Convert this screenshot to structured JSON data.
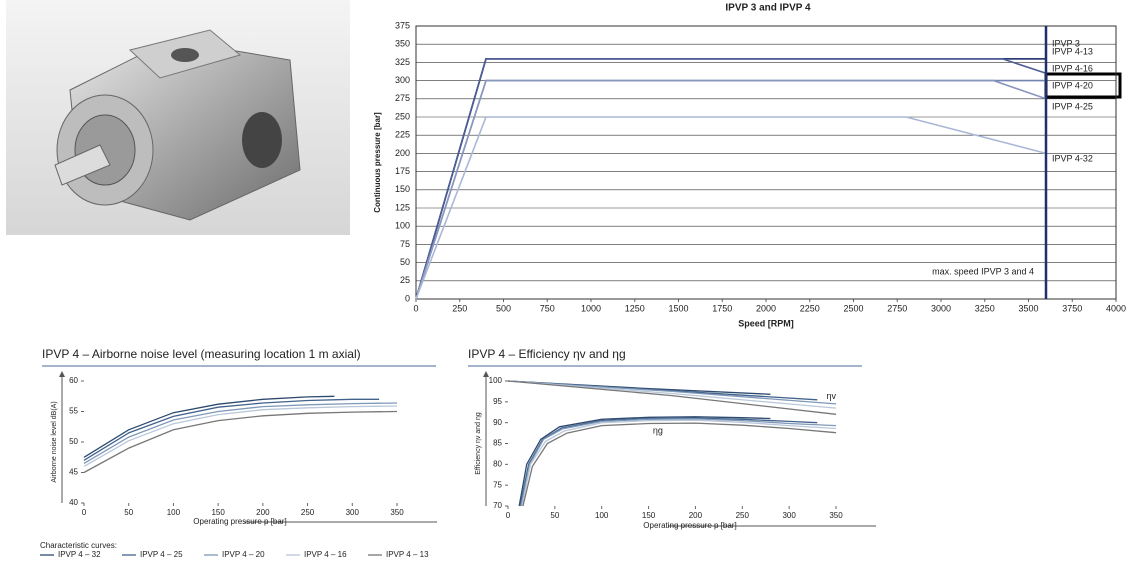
{
  "chart_data": [
    {
      "type": "line",
      "title": "IPVP 3 and IPVP 4",
      "x_label": "Speed [RPM]",
      "y_label": "Continuous pressure [bar]",
      "xlim": [
        0,
        4000
      ],
      "xticks": [
        0,
        250,
        500,
        750,
        1000,
        1250,
        1500,
        1750,
        2000,
        2250,
        2500,
        2750,
        3000,
        3250,
        3500,
        3750,
        4000
      ],
      "ylim": [
        0,
        375
      ],
      "yticks": [
        0,
        25,
        50,
        75,
        100,
        125,
        150,
        175,
        200,
        225,
        250,
        275,
        300,
        325,
        350,
        375
      ],
      "grid": true,
      "series": [
        {
          "name": "IPVP 3",
          "color": "#1f2f6e",
          "x": [
            0,
            400,
            3600
          ],
          "values": [
            0,
            330,
            330
          ]
        },
        {
          "name": "IPVP 4-13",
          "color": "#2c3d78",
          "x": [
            0,
            400,
            3600
          ],
          "values": [
            0,
            330,
            330
          ]
        },
        {
          "name": "IPVP 4-16",
          "color": "#4d5f95",
          "x": [
            0,
            400,
            3350,
            3600
          ],
          "values": [
            0,
            330,
            330,
            310
          ]
        },
        {
          "name": "IPVP 4-20",
          "color": "#7283b0",
          "x": [
            0,
            400,
            3300,
            3600
          ],
          "values": [
            0,
            300,
            300,
            300
          ]
        },
        {
          "name": "IPVP 4-25",
          "color": "#8a98bf",
          "x": [
            0,
            400,
            3300,
            3600
          ],
          "values": [
            0,
            300,
            300,
            275
          ]
        },
        {
          "name": "IPVP 4-32",
          "color": "#aab7d6",
          "x": [
            0,
            400,
            2800,
            3600
          ],
          "values": [
            0,
            250,
            250,
            200
          ]
        }
      ],
      "annotations": [
        {
          "text": "max. speed IPVP 3 and 4",
          "x": 3600,
          "y": 37
        }
      ]
    },
    {
      "type": "line",
      "title": "IPVP 4 – Airborne noise level (measuring location 1 m axial)",
      "x_label": "Operating pressure p [bar]",
      "y_label": "Airborne noise level dB(A)",
      "xlim": [
        0,
        350
      ],
      "xticks": [
        0,
        50,
        100,
        150,
        200,
        250,
        300,
        350
      ],
      "ylim": [
        40,
        60
      ],
      "yticks": [
        40,
        45,
        50,
        55,
        60
      ],
      "legend": "bottom",
      "legend_title": "Characteristic curves:",
      "series": [
        {
          "name": "IPVP 4 – 32",
          "color": "#2d4a6e",
          "x": [
            0,
            50,
            100,
            150,
            200,
            250,
            280
          ],
          "values": [
            47.5,
            52,
            54.8,
            56.2,
            57,
            57.4,
            57.5
          ]
        },
        {
          "name": "IPVP 4 – 25",
          "color": "#41628c",
          "x": [
            0,
            50,
            100,
            150,
            200,
            250,
            300,
            330
          ],
          "values": [
            47,
            51.5,
            54.2,
            55.7,
            56.4,
            56.8,
            57,
            57
          ]
        },
        {
          "name": "IPVP 4 – 20",
          "color": "#7f98b8",
          "x": [
            0,
            50,
            100,
            150,
            200,
            250,
            300,
            350
          ],
          "values": [
            46.5,
            50.8,
            53.6,
            55,
            55.8,
            56.1,
            56.3,
            56.4
          ]
        },
        {
          "name": "IPVP 4 – 16",
          "color": "#b8c7da",
          "x": [
            0,
            50,
            100,
            150,
            200,
            250,
            300,
            350
          ],
          "values": [
            46,
            50.2,
            53,
            54.5,
            55.3,
            55.6,
            55.8,
            55.9
          ]
        },
        {
          "name": "IPVP 4 – 13",
          "color": "#777777",
          "x": [
            0,
            50,
            100,
            150,
            200,
            250,
            300,
            350
          ],
          "values": [
            45,
            49,
            52,
            53.5,
            54.3,
            54.7,
            54.9,
            55
          ]
        }
      ]
    },
    {
      "type": "line",
      "title": "IPVP 4 – Efficiency ηv and ηg",
      "x_label": "Operating pressure p [bar]",
      "y_label": "Efficiency ηv and ηg",
      "xlim": [
        0,
        350
      ],
      "xticks": [
        0,
        50,
        100,
        150,
        200,
        250,
        300,
        350
      ],
      "ylim": [
        70,
        100
      ],
      "yticks": [
        70,
        75,
        80,
        85,
        90,
        95,
        100
      ],
      "series": [
        {
          "color": "#2d4a6e",
          "x": [
            0,
            140,
            280
          ],
          "values": [
            100,
            98.3,
            96.8
          ]
        },
        {
          "color": "#41628c",
          "x": [
            0,
            165,
            330
          ],
          "values": [
            100,
            97.8,
            95.5
          ]
        },
        {
          "color": "#7f98b8",
          "x": [
            0,
            175,
            350
          ],
          "values": [
            100,
            97.5,
            94.5
          ]
        },
        {
          "color": "#b8c7da",
          "x": [
            0,
            175,
            350
          ],
          "values": [
            100,
            97,
            93.5
          ]
        },
        {
          "color": "#777777",
          "x": [
            0,
            175,
            350
          ],
          "values": [
            100,
            96.5,
            92
          ]
        },
        {
          "color": "#2d4a6e",
          "x": [
            12,
            20,
            35,
            55,
            100,
            150,
            200,
            250,
            280
          ],
          "values": [
            70,
            80,
            86,
            89,
            90.8,
            91.3,
            91.4,
            91.2,
            91
          ]
        },
        {
          "color": "#41628c",
          "x": [
            13,
            22,
            37,
            57,
            100,
            150,
            200,
            250,
            300,
            330
          ],
          "values": [
            70,
            80,
            86,
            88.7,
            90.5,
            91,
            91.1,
            90.8,
            90.3,
            90
          ]
        },
        {
          "color": "#7f98b8",
          "x": [
            14,
            23,
            38,
            58,
            100,
            150,
            200,
            250,
            300,
            350
          ],
          "values": [
            70,
            80,
            86,
            88.5,
            90.3,
            90.8,
            90.9,
            90.5,
            89.8,
            89.3
          ]
        },
        {
          "color": "#b8c7da",
          "x": [
            15,
            24,
            40,
            60,
            100,
            150,
            200,
            250,
            300,
            350
          ],
          "values": [
            70,
            80,
            85.5,
            88,
            90,
            90.5,
            90.6,
            90.1,
            89.3,
            88.6
          ]
        },
        {
          "color": "#777777",
          "x": [
            16,
            26,
            42,
            63,
            100,
            150,
            200,
            250,
            300,
            350
          ],
          "values": [
            70,
            79.5,
            85,
            87.5,
            89.3,
            89.8,
            89.9,
            89.4,
            88.6,
            87.6
          ]
        }
      ],
      "annotations": [
        {
          "text": "ηv",
          "x": 345,
          "y": 96.3
        },
        {
          "text": "ηg",
          "x": 160,
          "y": 88
        }
      ]
    }
  ]
}
